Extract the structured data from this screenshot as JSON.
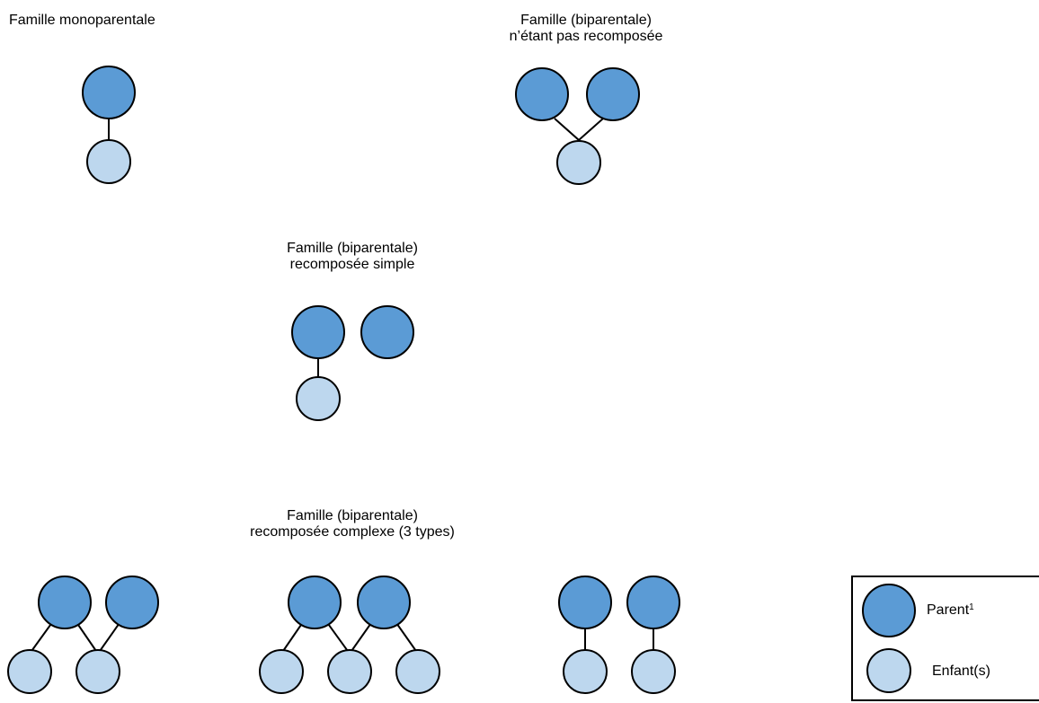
{
  "groups": {
    "mono": {
      "title_line1": "Famille monoparentale"
    },
    "biparentale": {
      "title_line1": "Famille (biparentale)",
      "title_line2": "n’étant pas recomposée"
    },
    "simple": {
      "title_line1": "Famille (biparentale)",
      "title_line2": "recomposée simple"
    },
    "complex": {
      "title_line1": "Famille (biparentale)",
      "title_line2": "recomposée complexe (3 types)"
    }
  },
  "legend": {
    "parent_label": "Parent",
    "parent_note": "1",
    "child_label": "Enfant(s)"
  },
  "colors": {
    "parent": "#5b9bd5",
    "child": "#bdd7ee",
    "stroke": "#000000"
  }
}
